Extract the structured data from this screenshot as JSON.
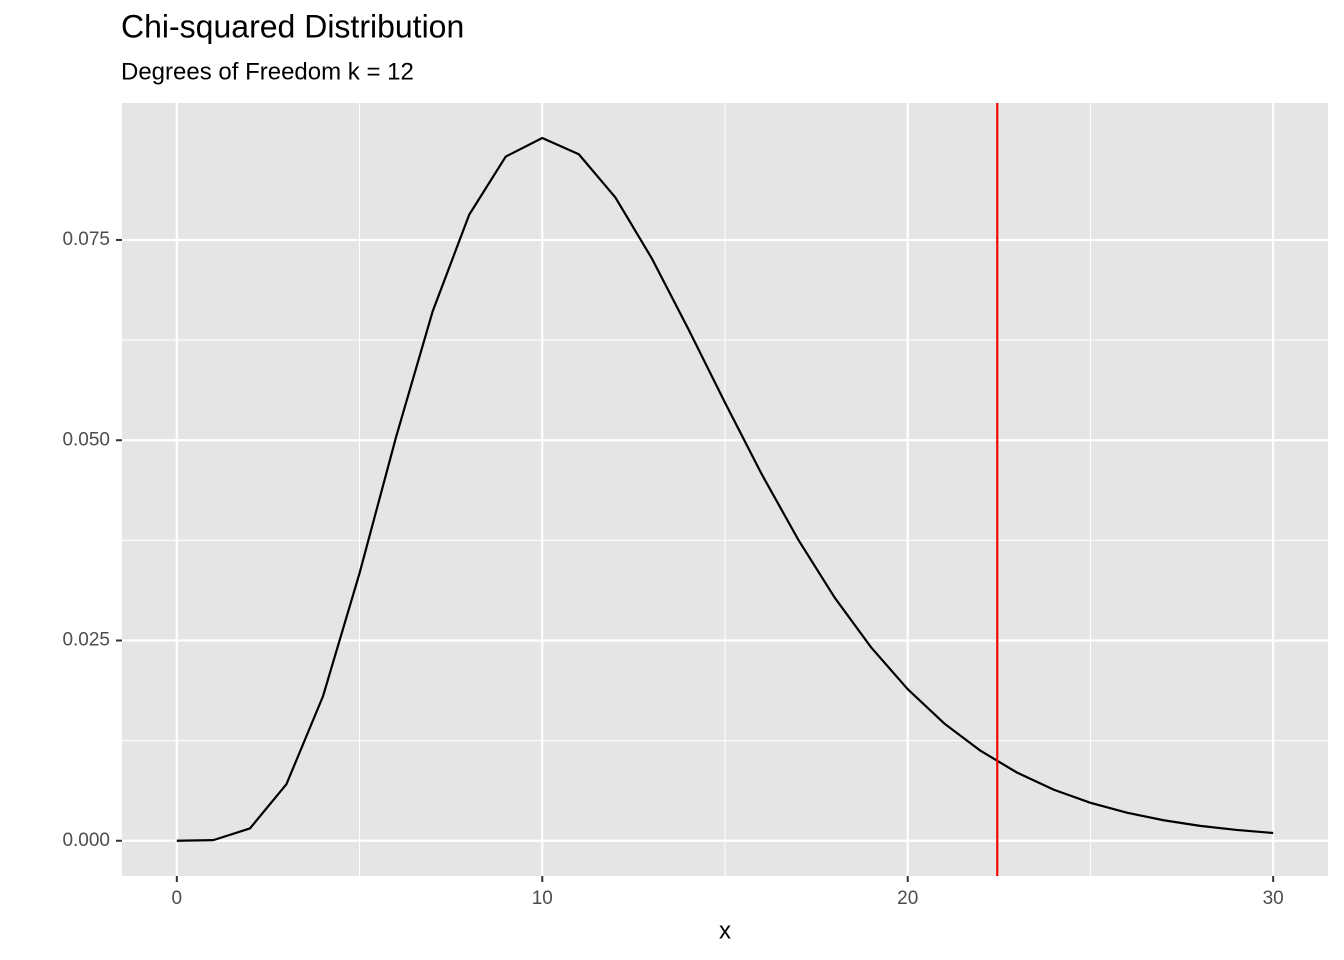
{
  "chart_data": {
    "type": "line",
    "title": "Chi-squared Distribution",
    "subtitle": "Degrees of Freedom k = 12",
    "x_label": "x",
    "x": [
      0,
      1,
      2,
      3,
      4,
      5,
      6,
      7,
      8,
      9,
      10,
      11,
      12,
      13,
      14,
      15,
      16,
      17,
      18,
      19,
      20,
      21,
      22,
      23,
      24,
      25,
      26,
      27,
      28,
      29,
      30
    ],
    "series": [
      {
        "color": "#000000",
        "values": [
          0,
          7.9e-05,
          0.001533,
          0.00706,
          0.01804,
          0.0334,
          0.05041,
          0.06608,
          0.07815,
          0.08541,
          0.08773,
          0.0857,
          0.08031,
          0.07268,
          0.06386,
          0.05469,
          0.0458,
          0.03762,
          0.03036,
          0.02413,
          0.01892,
          0.01464,
          0.01121,
          0.00849,
          0.00637,
          0.00474,
          0.0035,
          0.00256,
          0.00186,
          0.00135,
          0.000968
        ]
      }
    ],
    "vline": {
      "value": 22.45,
      "color": "#ff0000"
    },
    "xlim": [
      -1.5,
      31.5
    ],
    "ylim": [
      -0.0044,
      0.0921
    ],
    "xticks": [
      0,
      10,
      20,
      30
    ],
    "yticks": [
      {
        "value": 0,
        "label": "0.000"
      },
      {
        "value": 0.025,
        "label": "0.025"
      },
      {
        "value": 0.05,
        "label": "0.050"
      },
      {
        "value": 0.075,
        "label": "0.075"
      }
    ],
    "grid": true
  }
}
